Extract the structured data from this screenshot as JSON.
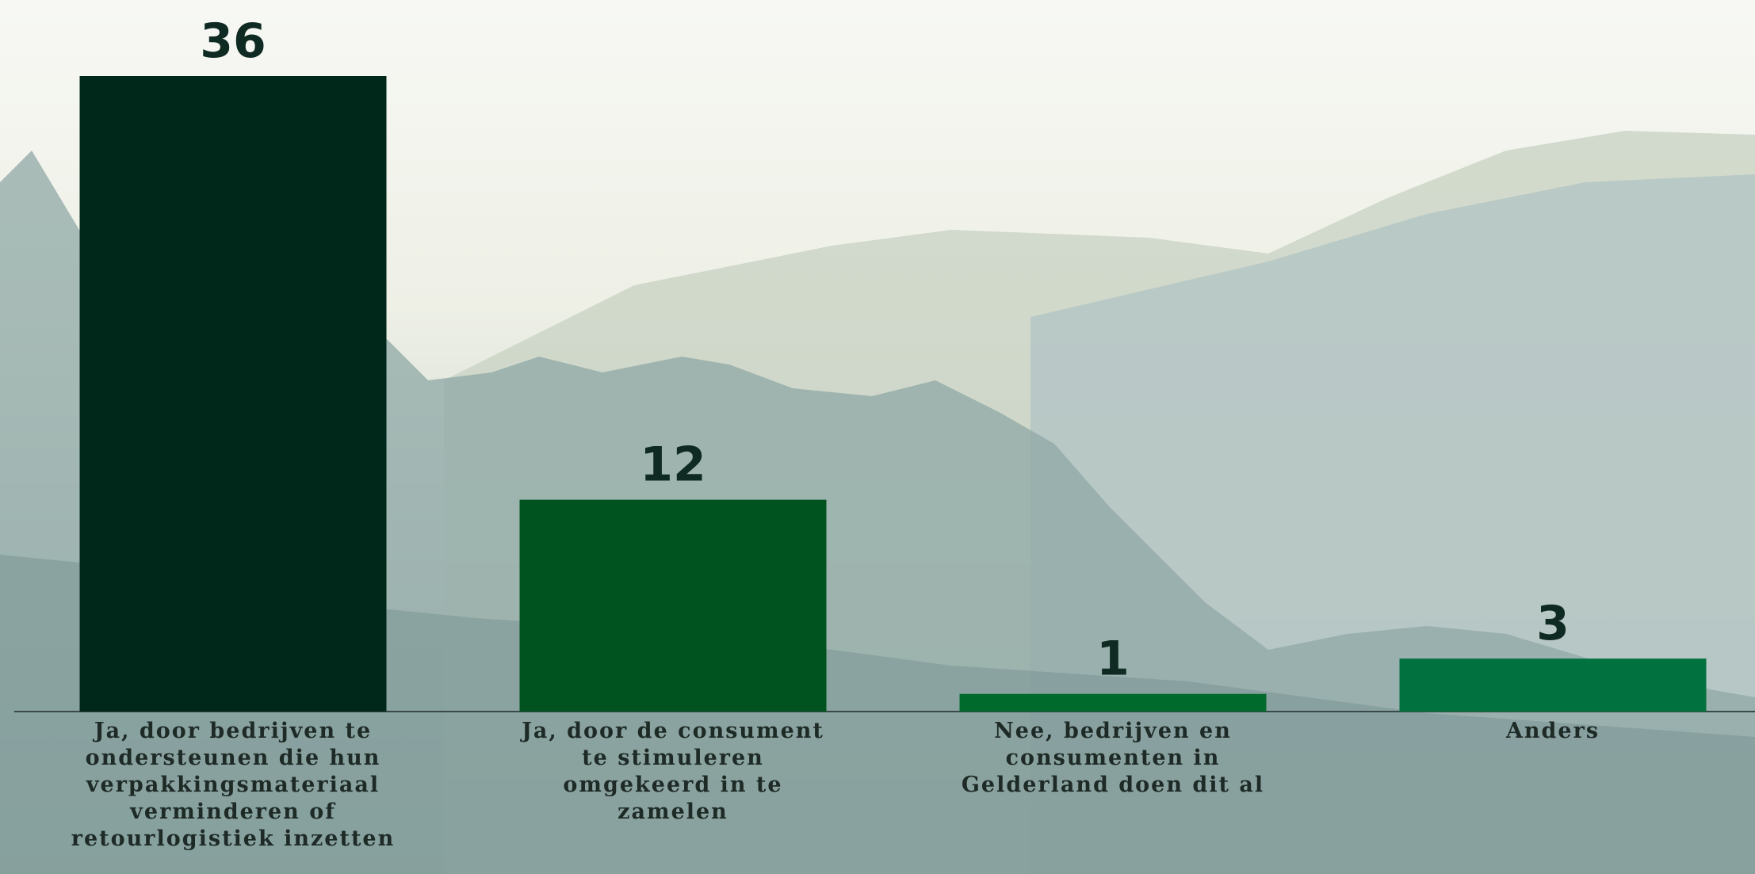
{
  "chart_data": {
    "type": "bar",
    "categories": [
      "Ja, door bedrijven te ondersteunen die hun verpakkingsmateriaal verminderen of retourlogistiek inzetten",
      "Ja, door de consument te stimuleren omgekeerd in te zamelen",
      "Nee, bedrijven en consumenten in Gelderland doen dit al",
      "Anders"
    ],
    "values": [
      36,
      12,
      1,
      3
    ],
    "colors": [
      "#00281a",
      "#00531f",
      "#006a2c",
      "#00713f"
    ]
  }
}
